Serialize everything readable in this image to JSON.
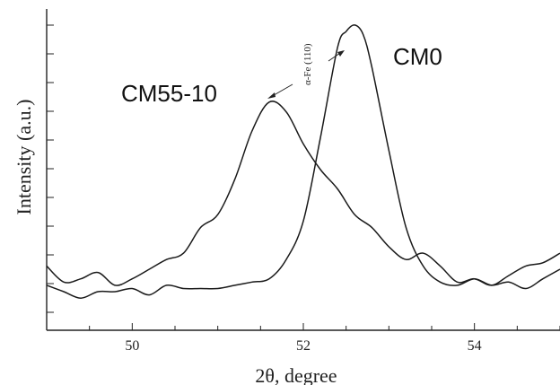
{
  "chart_data": {
    "type": "line",
    "title": "",
    "xlabel": "2θ, degree",
    "ylabel": "Intensity (a.u.)",
    "xlim": [
      49,
      55
    ],
    "x_ticks": [
      50,
      52,
      54
    ],
    "x_tick_labels": [
      "50",
      "52",
      "54"
    ],
    "y_ticks": "unlabeled",
    "grid": false,
    "annotation": "α-Fe (110)",
    "series": [
      {
        "name": "CM0",
        "color": "#1a1a1a",
        "points": [
          [
            49.0,
            0.14
          ],
          [
            49.2,
            0.12
          ],
          [
            49.4,
            0.1
          ],
          [
            49.6,
            0.12
          ],
          [
            49.8,
            0.12
          ],
          [
            50.0,
            0.13
          ],
          [
            50.2,
            0.11
          ],
          [
            50.4,
            0.14
          ],
          [
            50.6,
            0.13
          ],
          [
            50.8,
            0.13
          ],
          [
            51.0,
            0.13
          ],
          [
            51.2,
            0.14
          ],
          [
            51.4,
            0.15
          ],
          [
            51.6,
            0.16
          ],
          [
            51.8,
            0.22
          ],
          [
            52.0,
            0.34
          ],
          [
            52.2,
            0.6
          ],
          [
            52.4,
            0.88
          ],
          [
            52.5,
            0.93
          ],
          [
            52.6,
            0.95
          ],
          [
            52.7,
            0.92
          ],
          [
            52.8,
            0.82
          ],
          [
            53.0,
            0.56
          ],
          [
            53.2,
            0.32
          ],
          [
            53.4,
            0.2
          ],
          [
            53.6,
            0.15
          ],
          [
            53.8,
            0.14
          ],
          [
            54.0,
            0.16
          ],
          [
            54.2,
            0.14
          ],
          [
            54.4,
            0.15
          ],
          [
            54.6,
            0.13
          ],
          [
            54.8,
            0.16
          ],
          [
            55.0,
            0.19
          ]
        ]
      },
      {
        "name": "CM55-10",
        "color": "#1a1a1a",
        "points": [
          [
            49.0,
            0.2
          ],
          [
            49.2,
            0.15
          ],
          [
            49.4,
            0.16
          ],
          [
            49.6,
            0.18
          ],
          [
            49.8,
            0.14
          ],
          [
            50.0,
            0.16
          ],
          [
            50.2,
            0.19
          ],
          [
            50.4,
            0.22
          ],
          [
            50.6,
            0.24
          ],
          [
            50.8,
            0.32
          ],
          [
            51.0,
            0.36
          ],
          [
            51.2,
            0.47
          ],
          [
            51.4,
            0.62
          ],
          [
            51.6,
            0.71
          ],
          [
            51.8,
            0.68
          ],
          [
            52.0,
            0.58
          ],
          [
            52.2,
            0.5
          ],
          [
            52.4,
            0.44
          ],
          [
            52.6,
            0.36
          ],
          [
            52.8,
            0.32
          ],
          [
            53.0,
            0.26
          ],
          [
            53.2,
            0.22
          ],
          [
            53.4,
            0.24
          ],
          [
            53.6,
            0.2
          ],
          [
            53.8,
            0.15
          ],
          [
            54.0,
            0.16
          ],
          [
            54.2,
            0.14
          ],
          [
            54.4,
            0.17
          ],
          [
            54.6,
            0.2
          ],
          [
            54.8,
            0.21
          ],
          [
            55.0,
            0.24
          ]
        ]
      }
    ]
  }
}
